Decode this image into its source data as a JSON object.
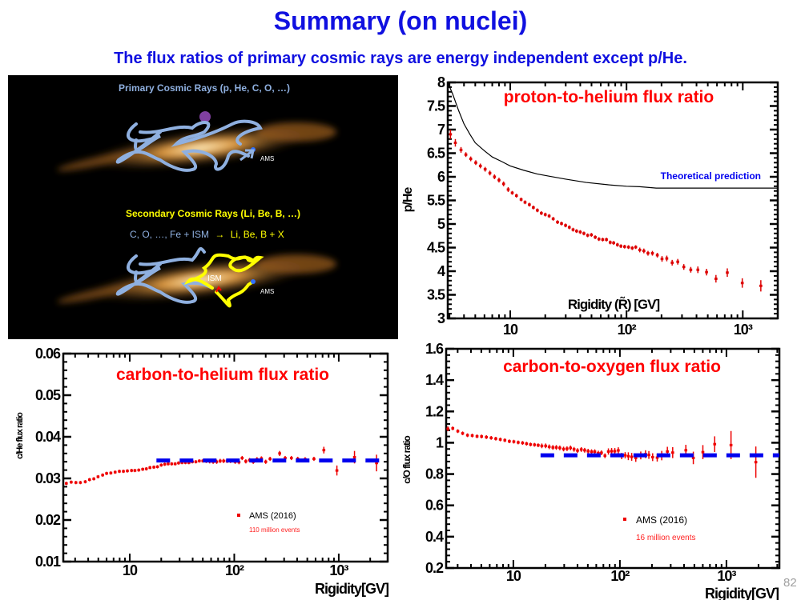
{
  "slide": {
    "title": "Summary (on nuclei)",
    "subtitle": "The flux ratios of primary cosmic rays are energy independent except p/He.",
    "page_number": "82"
  },
  "illustration": {
    "primary_label": "Primary Cosmic Rays (p, He, C, O, …)",
    "secondary_label": "Secondary Cosmic Rays (Li, Be, B, …)",
    "reaction_left": "C, O, …, Fe + ISM",
    "reaction_arrow": "→",
    "reaction_right": "Li, Be, B + X",
    "ams_label": "AMS",
    "ism_label": "ISM",
    "colors": {
      "primary_path": "#8fb0e0",
      "secondary_path": "#ffff00",
      "background": "#000000",
      "galaxy": "#c8822a"
    }
  },
  "chart_data": [
    {
      "type": "scatter",
      "title": "proton-to-helium flux ratio",
      "xlabel": "Rigidity (R̃) [GV]",
      "ylabel": "p/He",
      "x_scale": "log",
      "xlim": [
        2.9,
        2000
      ],
      "ylim": [
        3,
        8
      ],
      "y_ticks": [
        3,
        3.5,
        4,
        4.5,
        5,
        5.5,
        6,
        6.5,
        7,
        7.5,
        8
      ],
      "y_tick_labels": [
        "3",
        "3.5",
        "4",
        "4.5",
        "5",
        "5.5",
        "6",
        "6.5",
        "7",
        "7.5",
        "8"
      ],
      "x_ticks": [
        10,
        100,
        1000
      ],
      "x_tick_labels": [
        "10",
        "10²",
        "10³"
      ],
      "grid": false,
      "series": [
        {
          "color": "#dd0000",
          "x": [
            3.06,
            3.37,
            3.77,
            4.15,
            4.57,
            5.05,
            5.53,
            6.08,
            6.68,
            7.32,
            8.0,
            8.76,
            9.6,
            10.4,
            11.3,
            12.4,
            13.4,
            14.6,
            15.8,
            17.1,
            18.5,
            20.0,
            21.6,
            23.4,
            25.5,
            27.6,
            29.9,
            32.2,
            34.7,
            37.2,
            40.0,
            43.0,
            46.3,
            49.9,
            53.8,
            57.9,
            62.4,
            67.2,
            72.4,
            77.5,
            83.5,
            89.5,
            96.3,
            104,
            112,
            120,
            130,
            141,
            153,
            167,
            184,
            202,
            222,
            247,
            276,
            311,
            357,
            411,
            488,
            588,
            736,
            990,
            1430
          ],
          "y": [
            6.9,
            6.72,
            6.57,
            6.47,
            6.38,
            6.3,
            6.23,
            6.16,
            6.08,
            6.0,
            5.93,
            5.85,
            5.73,
            5.66,
            5.6,
            5.52,
            5.46,
            5.41,
            5.35,
            5.29,
            5.23,
            5.2,
            5.17,
            5.11,
            5.04,
            5.01,
            4.97,
            4.93,
            4.88,
            4.85,
            4.83,
            4.8,
            4.76,
            4.77,
            4.72,
            4.68,
            4.67,
            4.67,
            4.61,
            4.6,
            4.56,
            4.53,
            4.52,
            4.51,
            4.49,
            4.51,
            4.45,
            4.43,
            4.38,
            4.38,
            4.34,
            4.26,
            4.27,
            4.18,
            4.2,
            4.09,
            4.03,
            4.03,
            3.98,
            3.84,
            3.97,
            3.75,
            3.69
          ],
          "err": [
            0.1,
            0.08,
            0.06,
            0.05,
            0.05,
            0.05,
            0.05,
            0.05,
            0.05,
            0.05,
            0.05,
            0.05,
            0.05,
            0.04,
            0.04,
            0.04,
            0.04,
            0.04,
            0.04,
            0.04,
            0.04,
            0.04,
            0.04,
            0.04,
            0.04,
            0.04,
            0.04,
            0.04,
            0.04,
            0.04,
            0.04,
            0.04,
            0.04,
            0.04,
            0.04,
            0.04,
            0.04,
            0.04,
            0.04,
            0.04,
            0.04,
            0.04,
            0.04,
            0.04,
            0.04,
            0.04,
            0.05,
            0.05,
            0.05,
            0.05,
            0.05,
            0.06,
            0.06,
            0.06,
            0.06,
            0.06,
            0.06,
            0.07,
            0.07,
            0.08,
            0.09,
            0.1,
            0.12
          ]
        },
        {
          "name": "Theoretical prediction",
          "type": "line",
          "color": "#000000",
          "x": [
            2.9,
            3.2,
            3.6,
            4.0,
            4.5,
            5.0,
            6.0,
            7.0,
            8.5,
            10,
            13,
            17,
            22,
            30,
            45,
            70,
            100,
            130,
            180,
            500,
            2000
          ],
          "y": [
            8.0,
            7.75,
            7.4,
            7.12,
            6.9,
            6.72,
            6.55,
            6.42,
            6.32,
            6.23,
            6.14,
            6.06,
            6.01,
            5.95,
            5.88,
            5.83,
            5.8,
            5.79,
            5.76,
            5.76,
            5.76
          ]
        }
      ],
      "annotation": "Theoretical prediction",
      "annotation_color": "#0000ee"
    },
    {
      "type": "scatter",
      "title": "carbon-to-helium flux ratio",
      "xlabel": "Rigidity[GV]",
      "ylabel": "c/He flux ratio",
      "x_scale": "log",
      "xlim": [
        2.31,
        2940
      ],
      "ylim": [
        0.01,
        0.06
      ],
      "y_ticks": [
        0.01,
        0.02,
        0.03,
        0.04,
        0.05,
        0.06
      ],
      "y_tick_labels": [
        "0.01",
        "0.02",
        "0.03",
        "0.04",
        "0.05",
        "0.06"
      ],
      "x_ticks": [
        10,
        100,
        1000
      ],
      "x_tick_labels": [
        "10",
        "10²",
        "10³"
      ],
      "grid": false,
      "legend": {
        "entry": "AMS (2016)",
        "note": "110 million events",
        "placement": "bottom-center"
      },
      "series": [
        {
          "name": "AMS (2016)",
          "color": "#ee0000",
          "x": [
            2.47,
            2.75,
            3.05,
            3.37,
            3.75,
            4.12,
            4.53,
            4.97,
            5.5,
            6.0,
            6.59,
            7.24,
            7.95,
            8.69,
            9.48,
            10.4,
            11.2,
            12.2,
            13.3,
            14.4,
            15.6,
            17.0,
            18.4,
            20.0,
            21.6,
            23.3,
            25.2,
            27.2,
            29.3,
            31.6,
            34.1,
            36.8,
            39.7,
            42.9,
            46.3,
            50.0,
            53.9,
            58.2,
            62.8,
            67.9,
            73.3,
            79.1,
            85.3,
            92.1,
            102,
            111,
            119,
            129,
            140,
            152,
            165,
            182,
            200,
            220,
            272,
            307,
            352,
            405,
            477,
            579,
            720,
            960,
            1415,
            2300
          ],
          "y": [
            0.0288,
            0.0291,
            0.029,
            0.029,
            0.0292,
            0.0297,
            0.0299,
            0.0304,
            0.0308,
            0.0312,
            0.0313,
            0.0315,
            0.0317,
            0.0317,
            0.0318,
            0.0319,
            0.0319,
            0.032,
            0.0322,
            0.0323,
            0.0326,
            0.0327,
            0.0328,
            0.0332,
            0.0334,
            0.0335,
            0.0335,
            0.0335,
            0.0337,
            0.0338,
            0.0338,
            0.0338,
            0.034,
            0.034,
            0.0342,
            0.0342,
            0.0342,
            0.0341,
            0.034,
            0.034,
            0.0342,
            0.0342,
            0.0342,
            0.0342,
            0.034,
            0.0339,
            0.0349,
            0.0341,
            0.0344,
            0.034,
            0.0346,
            0.0348,
            0.034,
            0.0347,
            0.036,
            0.0349,
            0.0349,
            0.0347,
            0.0346,
            0.0347,
            0.0368,
            0.0319,
            0.0351,
            0.0337
          ],
          "err": [
            0.0004,
            0.0004,
            0.0004,
            0.0004,
            0.0004,
            0.0004,
            0.0004,
            0.0004,
            0.0004,
            0.0004,
            0.0004,
            0.0004,
            0.0004,
            0.0004,
            0.0004,
            0.0004,
            0.0004,
            0.0004,
            0.0004,
            0.0004,
            0.0004,
            0.0004,
            0.0004,
            0.0004,
            0.0004,
            0.0004,
            0.0004,
            0.0004,
            0.0004,
            0.0004,
            0.0004,
            0.0004,
            0.0004,
            0.0004,
            0.0004,
            0.0004,
            0.0005,
            0.0005,
            0.0005,
            0.0005,
            0.0005,
            0.0005,
            0.0005,
            0.0005,
            0.0005,
            0.0005,
            0.0005,
            0.0005,
            0.0005,
            0.0005,
            0.0005,
            0.0005,
            0.0005,
            0.0005,
            0.0006,
            0.0005,
            0.0005,
            0.0005,
            0.0005,
            0.0005,
            0.0008,
            0.0012,
            0.0015,
            0.002
          ]
        },
        {
          "type": "line",
          "style": "dashed",
          "color": "#0000ee",
          "x": [
            18,
            2940
          ],
          "y": [
            0.0343,
            0.0343
          ]
        }
      ]
    },
    {
      "type": "scatter",
      "title": "carbon-to-oxygen flux ratio",
      "xlabel": "Rigidity[GV]",
      "ylabel": "c/O flux ratio",
      "x_scale": "log",
      "xlim": [
        2.34,
        3140
      ],
      "ylim": [
        0.2,
        1.6
      ],
      "y_ticks": [
        0.2,
        0.4,
        0.6,
        0.8,
        1.0,
        1.2,
        1.4,
        1.6
      ],
      "y_tick_labels": [
        "0.2",
        "0.4",
        "0.6",
        "0.8",
        "1",
        "1.2",
        "1.4",
        "1.6"
      ],
      "x_ticks": [
        10,
        100,
        1000
      ],
      "x_tick_labels": [
        "10",
        "10²",
        "10³"
      ],
      "grid": false,
      "legend": {
        "entry": "AMS (2016)",
        "note": "16 million events",
        "placement": "bottom-center"
      },
      "series": [
        {
          "name": "AMS (2016)",
          "color": "#ee0000",
          "x": [
            2.43,
            2.7,
            3.01,
            3.34,
            3.71,
            4.11,
            4.56,
            5.03,
            5.58,
            6.19,
            6.84,
            7.54,
            8.32,
            9.17,
            10.1,
            11.1,
            12.2,
            13.3,
            14.5,
            15.8,
            17.1,
            18.5,
            20.1,
            21.7,
            23.5,
            25.3,
            27.3,
            29.6,
            31.9,
            34.4,
            37.1,
            40.0,
            43.4,
            46.7,
            50.3,
            54.2,
            58.1,
            62.7,
            67.1,
            72.4,
            78.0,
            83.6,
            89.6,
            96.6,
            104,
            112,
            120,
            129,
            141,
            157,
            174,
            187,
            203,
            224,
            247,
            279,
            313,
            416,
            489,
            601,
            776,
            1104,
            1888
          ],
          "y": [
            1.089,
            1.092,
            1.074,
            1.06,
            1.048,
            1.046,
            1.041,
            1.04,
            1.036,
            1.031,
            1.026,
            1.021,
            1.016,
            1.009,
            1.007,
            1.002,
            0.999,
            0.994,
            0.989,
            0.987,
            0.984,
            0.98,
            0.98,
            0.974,
            0.97,
            0.97,
            0.967,
            0.96,
            0.962,
            0.967,
            0.958,
            0.95,
            0.957,
            0.952,
            0.946,
            0.943,
            0.943,
            0.934,
            0.936,
            0.917,
            0.944,
            0.946,
            0.946,
            0.951,
            0.915,
            0.92,
            0.914,
            0.91,
            0.903,
            0.919,
            0.927,
            0.922,
            0.908,
            0.905,
            0.918,
            0.944,
            0.937,
            0.952,
            0.903,
            0.94,
            0.991,
            0.985,
            0.876
          ],
          "err": [
            0.015,
            0.012,
            0.012,
            0.012,
            0.012,
            0.012,
            0.012,
            0.012,
            0.012,
            0.012,
            0.012,
            0.012,
            0.012,
            0.012,
            0.012,
            0.012,
            0.012,
            0.012,
            0.012,
            0.012,
            0.012,
            0.015,
            0.015,
            0.015,
            0.015,
            0.015,
            0.015,
            0.015,
            0.015,
            0.015,
            0.015,
            0.015,
            0.015,
            0.015,
            0.015,
            0.015,
            0.015,
            0.015,
            0.015,
            0.015,
            0.02,
            0.02,
            0.02,
            0.02,
            0.02,
            0.02,
            0.025,
            0.025,
            0.025,
            0.025,
            0.025,
            0.025,
            0.025,
            0.025,
            0.03,
            0.03,
            0.035,
            0.035,
            0.04,
            0.045,
            0.05,
            0.09,
            0.1
          ]
        },
        {
          "type": "line",
          "style": "dashed",
          "color": "#0000ee",
          "x": [
            18,
            3140
          ],
          "y": [
            0.92,
            0.92
          ]
        }
      ]
    }
  ]
}
